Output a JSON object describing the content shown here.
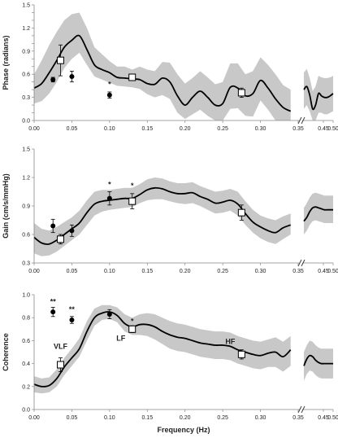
{
  "chart_data": [
    {
      "type": "line",
      "ylabel": "Phase (radians)",
      "xlabel": "",
      "ylim": [
        0,
        1.5
      ],
      "yticks": [
        "0.0",
        "0.3",
        "0.6",
        "0.9",
        "1.2",
        "1.5"
      ],
      "ytick_values": [
        0,
        0.3,
        0.6,
        0.9,
        1.2,
        1.5
      ],
      "yticks_all": [
        "0",
        "0.1",
        "0.2",
        "0.3",
        "0.4",
        "0.5",
        "0.6",
        "0.7",
        "0.8",
        "0.9",
        "1",
        "1.1",
        "1.2",
        "1.3",
        "1.4",
        "1.5"
      ],
      "ytick_all_values": [
        0,
        0.1,
        0.2,
        0.3,
        0.4,
        0.5,
        0.6,
        0.7,
        0.8,
        0.9,
        1,
        1.1,
        1.2,
        1.3,
        1.4,
        1.5
      ],
      "xticks": [
        "0.00",
        "0.05",
        "0.10",
        "0.15",
        "0.20",
        "0.25",
        "0.30",
        "0.35",
        "0.45",
        "0.50"
      ],
      "xtick_values": [
        0,
        0.05,
        0.1,
        0.15,
        0.2,
        0.25,
        0.3,
        0.35,
        0.45,
        0.5
      ],
      "series": [
        {
          "style": "mean-curve",
          "x": [
            0,
            0.01,
            0.02,
            0.03,
            0.04,
            0.05,
            0.06,
            0.07,
            0.08,
            0.09,
            0.1,
            0.11,
            0.12,
            0.13,
            0.14,
            0.15,
            0.16,
            0.17,
            0.18,
            0.19,
            0.2,
            0.21,
            0.22,
            0.23,
            0.24,
            0.25,
            0.26,
            0.27,
            0.28,
            0.29,
            0.3,
            0.31,
            0.32,
            0.33,
            0.34
          ],
          "y": [
            0.42,
            0.48,
            0.62,
            0.78,
            0.95,
            1.04,
            1.1,
            0.92,
            0.72,
            0.66,
            0.62,
            0.56,
            0.55,
            0.54,
            0.53,
            0.48,
            0.47,
            0.55,
            0.5,
            0.32,
            0.2,
            0.3,
            0.38,
            0.3,
            0.2,
            0.22,
            0.43,
            0.42,
            0.32,
            0.35,
            0.52,
            0.42,
            0.28,
            0.17,
            0.12
          ],
          "lower": [
            0.22,
            0.25,
            0.35,
            0.5,
            0.68,
            0.8,
            0.88,
            0.72,
            0.57,
            0.53,
            0.49,
            0.45,
            0.44,
            0.43,
            0.41,
            0.34,
            0.3,
            0.33,
            0.28,
            0.1,
            0.02,
            0.08,
            0.14,
            0.06,
            0.0,
            0.0,
            0.15,
            0.16,
            0.06,
            0.05,
            0.26,
            0.14,
            0.0,
            0.0,
            0.0
          ],
          "upper": [
            0.6,
            0.78,
            0.98,
            1.15,
            1.3,
            1.38,
            1.4,
            1.2,
            0.95,
            0.86,
            0.77,
            0.7,
            0.7,
            0.66,
            0.7,
            0.66,
            0.64,
            0.76,
            0.75,
            0.6,
            0.48,
            0.55,
            0.64,
            0.56,
            0.47,
            0.5,
            0.74,
            0.74,
            0.6,
            0.64,
            0.82,
            0.72,
            0.6,
            0.46,
            0.4
          ]
        },
        {
          "style": "mean-curve-right",
          "x": [
            0.35,
            0.365,
            0.38,
            0.395,
            0.41,
            0.425,
            0.44,
            0.455,
            0.47,
            0.485,
            0.5
          ],
          "y": [
            0.4,
            0.44,
            0.33,
            0.15,
            0.2,
            0.35,
            0.32,
            0.3,
            0.3,
            0.32,
            0.35
          ],
          "lower": [
            0.15,
            0.2,
            0.12,
            0.0,
            0.0,
            0.1,
            0.1,
            0.08,
            0.08,
            0.1,
            0.12
          ],
          "upper": [
            0.62,
            0.67,
            0.55,
            0.38,
            0.44,
            0.58,
            0.56,
            0.55,
            0.55,
            0.56,
            0.58
          ]
        },
        {
          "style": "filled-circle",
          "x": [
            0.025,
            0.05,
            0.1
          ],
          "y": [
            0.53,
            0.57,
            0.33
          ],
          "err": [
            0.03,
            0.07,
            0.04
          ]
        },
        {
          "style": "open-square",
          "x": [
            0.035,
            0.13,
            0.275
          ],
          "y": [
            0.78,
            0.56,
            0.36
          ],
          "err": [
            0.2,
            0.04,
            0.06
          ]
        }
      ],
      "annotations": [
        {
          "text": "*",
          "x": 0.1,
          "y": 0.44
        }
      ]
    },
    {
      "type": "line",
      "ylabel": "Gain (cm/s/mmHg)",
      "xlabel": "",
      "ylim": [
        0.3,
        1.5
      ],
      "yticks": [
        "0.3",
        "0.6",
        "0.9",
        "1.2",
        "1.5"
      ],
      "ytick_values": [
        0.3,
        0.6,
        0.9,
        1.2,
        1.5
      ],
      "xticks": [
        "0.00",
        "0.05",
        "0.10",
        "0.15",
        "0.20",
        "0.25",
        "0.30",
        "0.35",
        "0.45",
        "0.50"
      ],
      "xtick_values": [
        0,
        0.05,
        0.1,
        0.15,
        0.2,
        0.25,
        0.3,
        0.35,
        0.45,
        0.5
      ],
      "series": [
        {
          "style": "mean-curve",
          "x": [
            0,
            0.01,
            0.02,
            0.03,
            0.04,
            0.05,
            0.06,
            0.07,
            0.08,
            0.09,
            0.1,
            0.11,
            0.12,
            0.13,
            0.14,
            0.15,
            0.16,
            0.17,
            0.18,
            0.19,
            0.2,
            0.21,
            0.22,
            0.23,
            0.24,
            0.25,
            0.26,
            0.27,
            0.28,
            0.29,
            0.3,
            0.31,
            0.32,
            0.33,
            0.34
          ],
          "y": [
            0.57,
            0.51,
            0.5,
            0.54,
            0.6,
            0.66,
            0.72,
            0.83,
            0.92,
            0.95,
            0.96,
            0.97,
            0.98,
            0.98,
            1.02,
            1.07,
            1.09,
            1.08,
            1.05,
            1.03,
            1.03,
            1.04,
            1.0,
            0.97,
            0.93,
            0.94,
            0.96,
            0.92,
            0.82,
            0.73,
            0.68,
            0.64,
            0.62,
            0.67,
            0.7
          ],
          "lower": [
            0.4,
            0.37,
            0.38,
            0.42,
            0.48,
            0.54,
            0.6,
            0.7,
            0.8,
            0.84,
            0.86,
            0.87,
            0.88,
            0.89,
            0.93,
            0.96,
            0.97,
            0.97,
            0.95,
            0.93,
            0.92,
            0.93,
            0.9,
            0.86,
            0.82,
            0.83,
            0.85,
            0.8,
            0.7,
            0.62,
            0.56,
            0.52,
            0.5,
            0.55,
            0.6
          ],
          "upper": [
            0.72,
            0.66,
            0.64,
            0.68,
            0.73,
            0.78,
            0.85,
            0.96,
            1.05,
            1.07,
            1.07,
            1.08,
            1.09,
            1.09,
            1.13,
            1.18,
            1.2,
            1.19,
            1.16,
            1.14,
            1.14,
            1.15,
            1.11,
            1.08,
            1.05,
            1.06,
            1.08,
            1.05,
            0.95,
            0.86,
            0.8,
            0.77,
            0.75,
            0.79,
            0.82
          ]
        },
        {
          "style": "mean-curve-right",
          "x": [
            0.35,
            0.365,
            0.38,
            0.395,
            0.41,
            0.425,
            0.44,
            0.455,
            0.47,
            0.485,
            0.5
          ],
          "y": [
            0.74,
            0.78,
            0.84,
            0.88,
            0.89,
            0.88,
            0.87,
            0.86,
            0.86,
            0.86,
            0.86
          ],
          "lower": [
            0.6,
            0.64,
            0.7,
            0.74,
            0.75,
            0.74,
            0.73,
            0.72,
            0.72,
            0.72,
            0.72
          ],
          "upper": [
            0.88,
            0.93,
            0.99,
            1.03,
            1.04,
            1.03,
            1.02,
            1.01,
            1.01,
            1.01,
            1.01
          ]
        },
        {
          "style": "filled-circle",
          "x": [
            0.025,
            0.05,
            0.1
          ],
          "y": [
            0.69,
            0.64,
            0.98
          ],
          "err": [
            0.07,
            0.06,
            0.07
          ]
        },
        {
          "style": "open-square",
          "x": [
            0.035,
            0.13,
            0.275
          ],
          "y": [
            0.55,
            0.95,
            0.83
          ],
          "err": [
            0.05,
            0.08,
            0.08
          ]
        }
      ],
      "annotations": [
        {
          "text": "*",
          "x": 0.1,
          "y": 1.1
        },
        {
          "text": "*",
          "x": 0.13,
          "y": 1.09
        }
      ]
    },
    {
      "type": "line",
      "ylabel": "Coherence",
      "xlabel": "Frequency (Hz)",
      "ylim": [
        0,
        1.0
      ],
      "yticks": [
        "0.0",
        "0.2",
        "0.4",
        "0.6",
        "0.8",
        "1.0"
      ],
      "ytick_values": [
        0,
        0.2,
        0.4,
        0.6,
        0.8,
        1.0
      ],
      "xticks": [
        "0.00",
        "0.05",
        "0.10",
        "0.15",
        "0.20",
        "0.25",
        "0.30",
        "0.35",
        "0.45",
        "0.50"
      ],
      "xtick_values": [
        0,
        0.05,
        0.1,
        0.15,
        0.2,
        0.25,
        0.3,
        0.35,
        0.45,
        0.5
      ],
      "series": [
        {
          "style": "mean-curve",
          "x": [
            0,
            0.01,
            0.02,
            0.03,
            0.04,
            0.05,
            0.06,
            0.07,
            0.08,
            0.09,
            0.1,
            0.11,
            0.12,
            0.13,
            0.14,
            0.15,
            0.16,
            0.17,
            0.18,
            0.19,
            0.2,
            0.21,
            0.22,
            0.23,
            0.24,
            0.25,
            0.26,
            0.27,
            0.28,
            0.29,
            0.3,
            0.31,
            0.32,
            0.33,
            0.34
          ],
          "y": [
            0.22,
            0.2,
            0.21,
            0.27,
            0.37,
            0.45,
            0.53,
            0.68,
            0.8,
            0.84,
            0.85,
            0.82,
            0.75,
            0.72,
            0.74,
            0.74,
            0.72,
            0.68,
            0.65,
            0.63,
            0.62,
            0.6,
            0.58,
            0.57,
            0.56,
            0.56,
            0.55,
            0.52,
            0.5,
            0.48,
            0.47,
            0.49,
            0.5,
            0.46,
            0.52
          ],
          "lower": [
            0.15,
            0.14,
            0.15,
            0.2,
            0.3,
            0.38,
            0.46,
            0.6,
            0.73,
            0.78,
            0.79,
            0.76,
            0.68,
            0.65,
            0.65,
            0.64,
            0.61,
            0.57,
            0.53,
            0.51,
            0.5,
            0.48,
            0.46,
            0.45,
            0.44,
            0.44,
            0.43,
            0.4,
            0.38,
            0.36,
            0.35,
            0.37,
            0.37,
            0.33,
            0.38
          ],
          "upper": [
            0.29,
            0.27,
            0.28,
            0.35,
            0.45,
            0.53,
            0.62,
            0.77,
            0.88,
            0.91,
            0.91,
            0.89,
            0.83,
            0.8,
            0.83,
            0.84,
            0.83,
            0.8,
            0.77,
            0.75,
            0.74,
            0.72,
            0.7,
            0.69,
            0.68,
            0.68,
            0.67,
            0.64,
            0.62,
            0.6,
            0.59,
            0.61,
            0.63,
            0.59,
            0.64
          ]
        },
        {
          "style": "mean-curve-right",
          "x": [
            0.35,
            0.365,
            0.38,
            0.395,
            0.41,
            0.425,
            0.44,
            0.455,
            0.47,
            0.485,
            0.5
          ],
          "y": [
            0.38,
            0.44,
            0.47,
            0.46,
            0.43,
            0.41,
            0.4,
            0.4,
            0.4,
            0.4,
            0.4
          ],
          "lower": [
            0.25,
            0.31,
            0.34,
            0.33,
            0.3,
            0.28,
            0.27,
            0.27,
            0.27,
            0.27,
            0.27
          ],
          "upper": [
            0.5,
            0.56,
            0.6,
            0.59,
            0.56,
            0.54,
            0.53,
            0.53,
            0.53,
            0.53,
            0.53
          ]
        },
        {
          "style": "filled-circle",
          "x": [
            0.025,
            0.05,
            0.1
          ],
          "y": [
            0.85,
            0.78,
            0.83
          ],
          "err": [
            0.04,
            0.03,
            0.04
          ]
        },
        {
          "style": "open-square",
          "x": [
            0.035,
            0.13,
            0.275
          ],
          "y": [
            0.39,
            0.7,
            0.48
          ],
          "err": [
            0.06,
            0.03,
            0.04
          ]
        }
      ],
      "annotations": [
        {
          "text": "**",
          "x": 0.025,
          "y": 0.92
        },
        {
          "text": "**",
          "x": 0.05,
          "y": 0.85
        },
        {
          "text": "*",
          "x": 0.13,
          "y": 0.75
        },
        {
          "text": "VLF",
          "x": 0.035,
          "y": 0.53
        },
        {
          "text": "LF",
          "x": 0.115,
          "y": 0.6
        },
        {
          "text": "HF",
          "x": 0.26,
          "y": 0.57
        }
      ]
    }
  ]
}
